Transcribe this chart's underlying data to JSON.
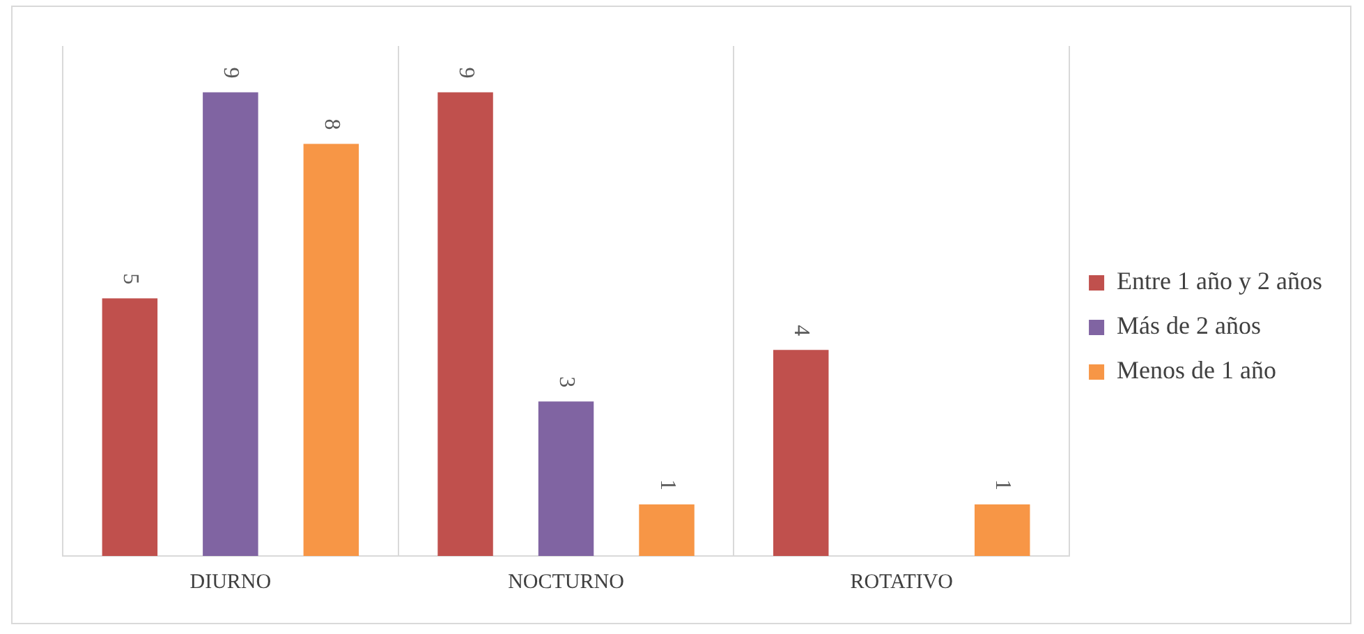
{
  "chart_data": {
    "type": "bar",
    "categories": [
      "DIURNO",
      "NOCTURNO",
      "ROTATIVO"
    ],
    "series": [
      {
        "name": "Entre 1 año y 2 años",
        "color": "#c0504d",
        "values": [
          5,
          9,
          4
        ]
      },
      {
        "name": "Más de 2 años",
        "color": "#8064a2",
        "values": [
          9,
          3,
          null
        ]
      },
      {
        "name": "Menos de 1 año",
        "color": "#f79646",
        "values": [
          8,
          1,
          1
        ]
      }
    ],
    "ylim": [
      0,
      9.9
    ],
    "data_labels": true,
    "grid": "x",
    "legend": "right"
  }
}
